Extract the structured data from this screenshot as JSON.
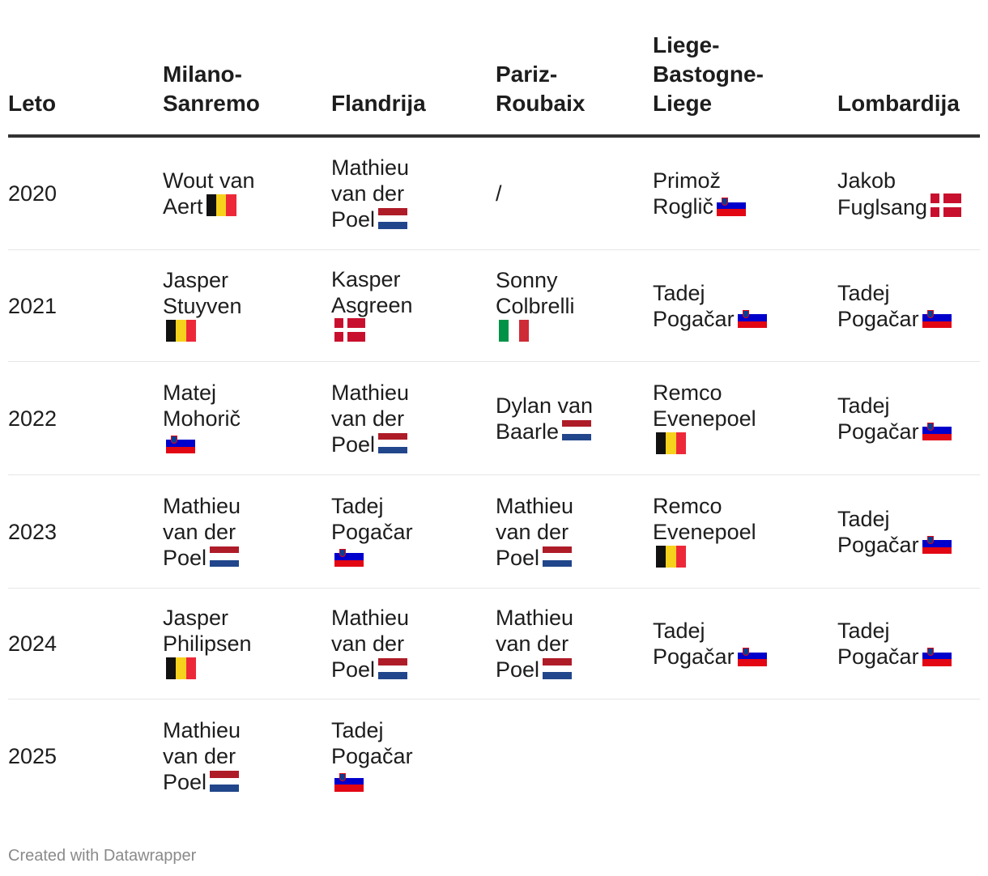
{
  "headers": [
    "Leto",
    "Milano-\nSanremo",
    "Flandrija",
    "Pariz-\nRoubaix",
    "Liege-\nBastogne-\nLiege",
    "Lombardija"
  ],
  "rows": [
    {
      "year": "2020",
      "cells": [
        {
          "name": "Wout van\nAert",
          "flag": "be"
        },
        {
          "name": "Mathieu\nvan der\nPoel",
          "flag": "nl"
        },
        {
          "name": "/",
          "flag": ""
        },
        {
          "name": "Primož\nRoglič",
          "flag": "si"
        },
        {
          "name": "Jakob\nFuglsang",
          "flag": "dk"
        }
      ]
    },
    {
      "year": "2021",
      "cells": [
        {
          "name": "Jasper\nStuyven\n",
          "flag": "be"
        },
        {
          "name": "Kasper\nAsgreen\n",
          "flag": "dk"
        },
        {
          "name": "Sonny\nColbrelli\n",
          "flag": "it"
        },
        {
          "name": "Tadej\nPogačar",
          "flag": "si"
        },
        {
          "name": "Tadej\nPogačar",
          "flag": "si"
        }
      ]
    },
    {
      "year": "2022",
      "cells": [
        {
          "name": "Matej\nMohorič\n",
          "flag": "si"
        },
        {
          "name": "Mathieu\nvan der\nPoel",
          "flag": "nl"
        },
        {
          "name": "Dylan van\nBaarle",
          "flag": "nl"
        },
        {
          "name": "Remco\nEvenepoel\n",
          "flag": "be"
        },
        {
          "name": "Tadej\nPogačar",
          "flag": "si"
        }
      ]
    },
    {
      "year": "2023",
      "cells": [
        {
          "name": "Mathieu\nvan der\nPoel",
          "flag": "nl"
        },
        {
          "name": "Tadej\nPogačar\n",
          "flag": "si"
        },
        {
          "name": "Mathieu\nvan der\nPoel",
          "flag": "nl"
        },
        {
          "name": "Remco\nEvenepoel\n",
          "flag": "be"
        },
        {
          "name": "Tadej\nPogačar",
          "flag": "si"
        }
      ]
    },
    {
      "year": "2024",
      "cells": [
        {
          "name": "Jasper\nPhilipsen\n",
          "flag": "be"
        },
        {
          "name": "Mathieu\nvan der\nPoel",
          "flag": "nl"
        },
        {
          "name": "Mathieu\nvan der\nPoel",
          "flag": "nl"
        },
        {
          "name": "Tadej\nPogačar",
          "flag": "si"
        },
        {
          "name": "Tadej\nPogačar",
          "flag": "si"
        }
      ]
    },
    {
      "year": "2025",
      "cells": [
        {
          "name": "Mathieu\nvan der\nPoel",
          "flag": "nl"
        },
        {
          "name": "Tadej\nPogačar\n",
          "flag": "si"
        },
        {
          "name": "",
          "flag": ""
        },
        {
          "name": "",
          "flag": ""
        },
        {
          "name": "",
          "flag": ""
        }
      ]
    }
  ],
  "footer": "Created with Datawrapper",
  "colors": {
    "text": "#1d1d1d",
    "header_rule": "#333333",
    "row_rule": "#e6e6e6",
    "footer": "#8a8a8a"
  }
}
